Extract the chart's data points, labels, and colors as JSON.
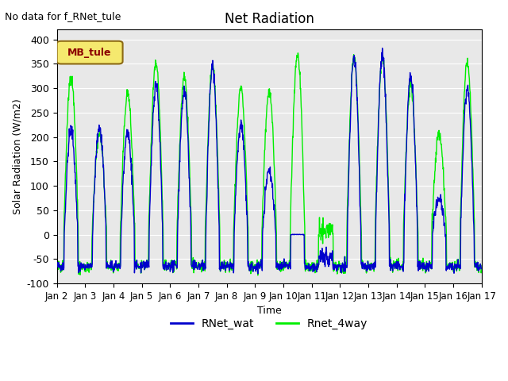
{
  "title": "Net Radiation",
  "xlabel": "Time",
  "ylabel": "Solar Radiation (W/m2)",
  "top_left_text": "No data for f_RNet_tule",
  "legend_box_text": "MB_tule",
  "legend_box_color": "#c8b400",
  "legend_box_text_color": "#8b0000",
  "ylim": [
    -100,
    420
  ],
  "yticks": [
    -100,
    -50,
    0,
    50,
    100,
    150,
    200,
    250,
    300,
    350,
    400
  ],
  "xtick_positions": [
    0,
    1,
    2,
    3,
    4,
    5,
    6,
    7,
    8,
    9,
    10,
    11,
    12,
    13,
    14,
    15
  ],
  "xtick_labels": [
    "Jan 2",
    "Jan 3",
    "Jan 4",
    "Jan 5",
    "Jan 6",
    "Jan 7",
    "Jan 8",
    "Jan 9",
    "Jan 10",
    "Jan 11",
    "Jan 12",
    "Jan 13",
    "Jan 14",
    "Jan 15",
    "Jan 16",
    "Jan 17"
  ],
  "color_blue": "#0000cc",
  "color_green": "#00ee00",
  "line_width": 1.0,
  "bg_color": "#e8e8e8",
  "legend_items": [
    "RNet_wat",
    "Rnet_4way"
  ],
  "num_days": 15,
  "points_per_day": 96,
  "day_peaks_blue": [
    215,
    220,
    210,
    310,
    295,
    345,
    225,
    130,
    5,
    -30,
    365,
    370,
    325,
    75,
    300
  ],
  "day_peaks_green": [
    325,
    205,
    290,
    350,
    320,
    345,
    300,
    295,
    370,
    55,
    365,
    360,
    305,
    210,
    355
  ]
}
